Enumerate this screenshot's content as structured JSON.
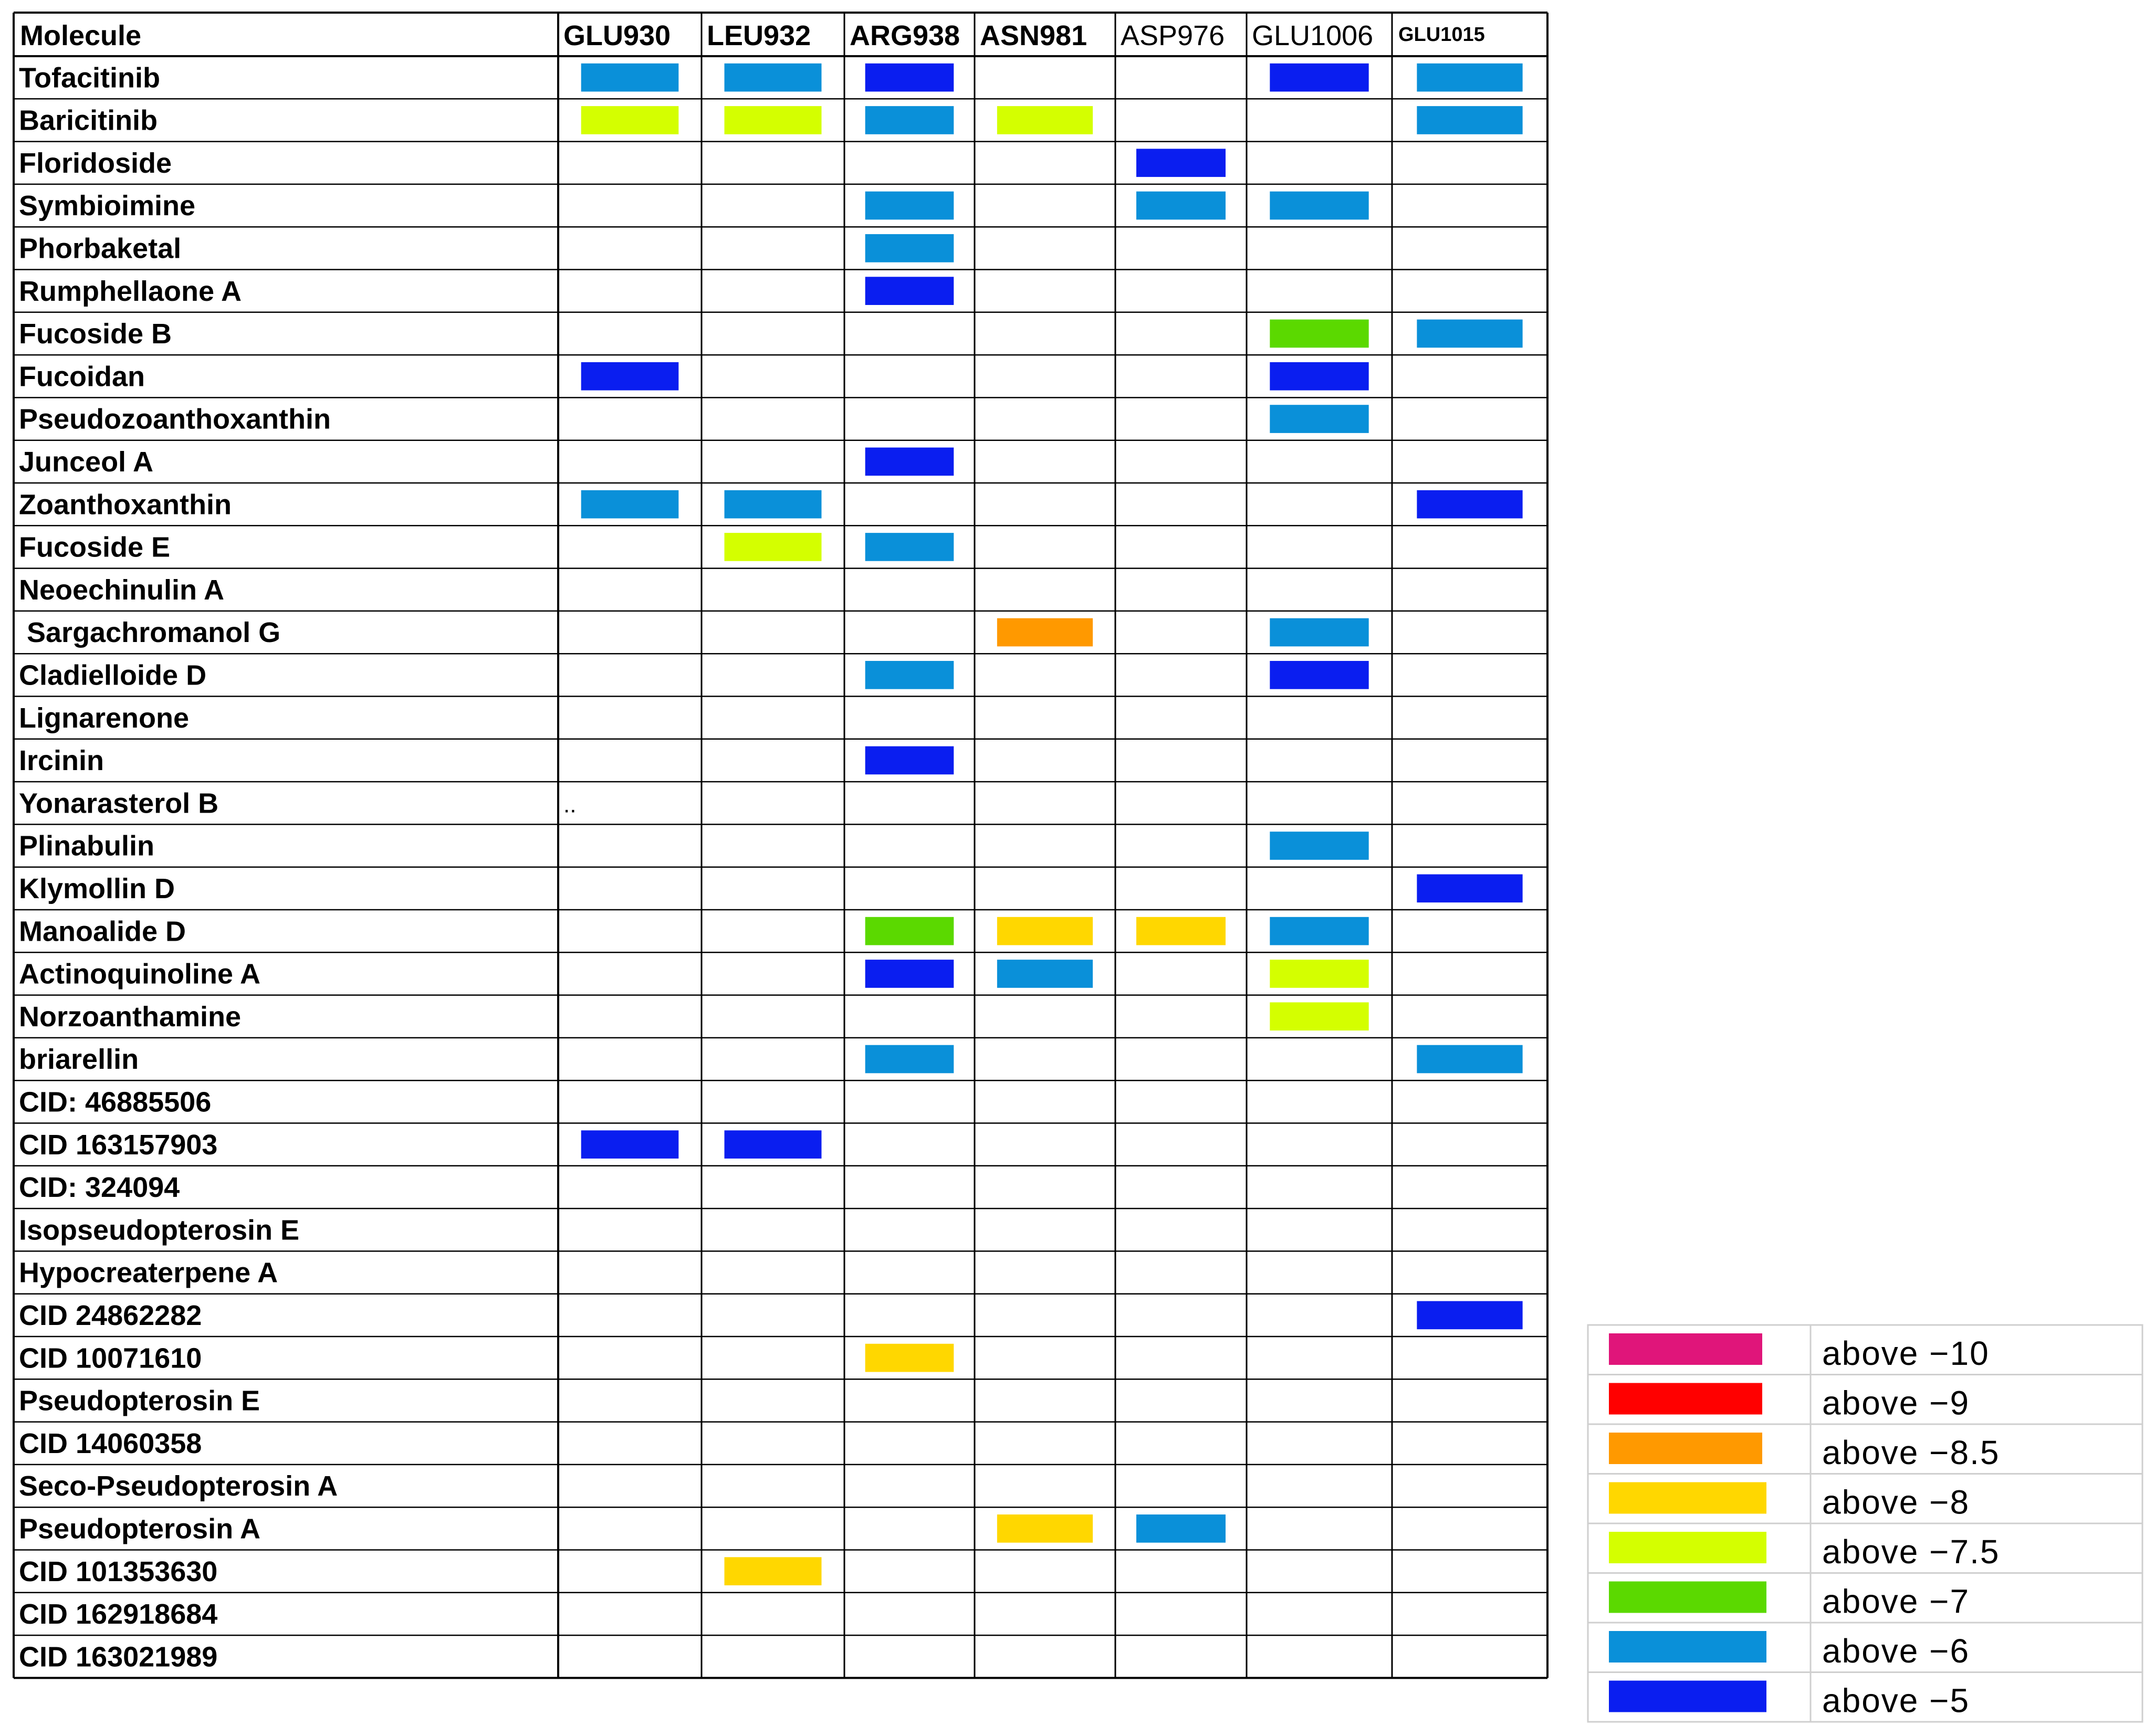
{
  "chart_data": {
    "type": "table",
    "header_corner": "Molecule",
    "columns": [
      "GLU930",
      "LEU932",
      "ARG938",
      "ASN981",
      "ASP976",
      "GLU1006",
      "GLU1015"
    ],
    "rows": [
      {
        "molecule": "Tofacitinib",
        "cells": [
          "above −6",
          "above −6",
          "above −5",
          "",
          "",
          "above −5",
          "above −6"
        ]
      },
      {
        "molecule": "Baricitinib",
        "cells": [
          "above −7.5",
          "above −7.5",
          "above −6",
          "above −7.5",
          "",
          "",
          "above −6"
        ]
      },
      {
        "molecule": "Floridoside",
        "cells": [
          "",
          "",
          "",
          "",
          "above −5",
          "",
          ""
        ]
      },
      {
        "molecule": "Symbioimine",
        "cells": [
          "",
          "",
          "above −6",
          "",
          "above −6",
          "above −6",
          ""
        ]
      },
      {
        "molecule": "Phorbaketal",
        "cells": [
          "",
          "",
          "above −6",
          "",
          "",
          "",
          ""
        ]
      },
      {
        "molecule": "Rumphellaone A",
        "cells": [
          "",
          "",
          "above −5",
          "",
          "",
          "",
          ""
        ]
      },
      {
        "molecule": "Fucoside B",
        "cells": [
          "",
          "",
          "",
          "",
          "",
          "above −7",
          "above −6"
        ]
      },
      {
        "molecule": "Fucoidan",
        "cells": [
          "above −5",
          "",
          "",
          "",
          "",
          "above −5",
          ""
        ]
      },
      {
        "molecule": "Pseudozoanthoxanthin",
        "cells": [
          "",
          "",
          "",
          "",
          "",
          "above −6",
          ""
        ]
      },
      {
        "molecule": "Junceol A",
        "cells": [
          "",
          "",
          "above −5",
          "",
          "",
          "",
          ""
        ]
      },
      {
        "molecule": "Zoanthoxanthin",
        "cells": [
          "above −6",
          "above −6",
          "",
          "",
          "",
          "",
          "above −5"
        ]
      },
      {
        "molecule": "Fucoside E",
        "cells": [
          "",
          "above −7.5",
          "above −6",
          "",
          "",
          "",
          ""
        ]
      },
      {
        "molecule": "Neoechinulin A",
        "cells": [
          "",
          "",
          "",
          "",
          "",
          "",
          ""
        ]
      },
      {
        "molecule": " Sargachromanol G",
        "cells": [
          "",
          "",
          "",
          "above −8.5",
          "",
          "above −6",
          ""
        ]
      },
      {
        "molecule": "Cladielloide D",
        "cells": [
          "",
          "",
          "above −6",
          "",
          "",
          "above −5",
          ""
        ]
      },
      {
        "molecule": "Lignarenone",
        "cells": [
          "",
          "",
          "",
          "",
          "",
          "",
          ""
        ]
      },
      {
        "molecule": "Ircinin",
        "cells": [
          "",
          "",
          "above −5",
          "",
          "",
          "",
          ""
        ]
      },
      {
        "molecule": "Yonarasterol B",
        "cells": [
          "",
          "",
          "",
          "",
          "",
          "",
          ""
        ],
        "note": ".."
      },
      {
        "molecule": "Plinabulin",
        "cells": [
          "",
          "",
          "",
          "",
          "",
          "above −6",
          ""
        ]
      },
      {
        "molecule": "Klymollin D",
        "cells": [
          "",
          "",
          "",
          "",
          "",
          "",
          "above −5"
        ]
      },
      {
        "molecule": "Manoalide D",
        "cells": [
          "",
          "",
          "above −7",
          "above −8",
          "above −8",
          "above −6",
          ""
        ]
      },
      {
        "molecule": "Actinoquinoline A",
        "cells": [
          "",
          "",
          "above −5",
          "above −6",
          "",
          "above −7.5",
          ""
        ]
      },
      {
        "molecule": "Norzoanthamine",
        "cells": [
          "",
          "",
          "",
          "",
          "",
          "above −7.5",
          ""
        ]
      },
      {
        "molecule": "briarellin",
        "cells": [
          "",
          "",
          "above −6",
          "",
          "",
          "",
          "above −6"
        ]
      },
      {
        "molecule": "CID: 46885506",
        "cells": [
          "",
          "",
          "",
          "",
          "",
          "",
          ""
        ]
      },
      {
        "molecule": "CID 163157903",
        "cells": [
          "above −5",
          "above −5",
          "",
          "",
          "",
          "",
          ""
        ]
      },
      {
        "molecule": "CID: 324094",
        "cells": [
          "",
          "",
          "",
          "",
          "",
          "",
          ""
        ]
      },
      {
        "molecule": "Isopseudopterosin E",
        "cells": [
          "",
          "",
          "",
          "",
          "",
          "",
          ""
        ]
      },
      {
        "molecule": "Hypocreaterpene A",
        "cells": [
          "",
          "",
          "",
          "",
          "",
          "",
          ""
        ]
      },
      {
        "molecule": "CID 24862282",
        "cells": [
          "",
          "",
          "",
          "",
          "",
          "",
          "above −5"
        ]
      },
      {
        "molecule": "CID 10071610",
        "cells": [
          "",
          "",
          "above −8",
          "",
          "",
          "",
          ""
        ]
      },
      {
        "molecule": "Pseudopterosin E",
        "cells": [
          "",
          "",
          "",
          "",
          "",
          "",
          ""
        ]
      },
      {
        "molecule": "CID 14060358",
        "cells": [
          "",
          "",
          "",
          "",
          "",
          "",
          ""
        ]
      },
      {
        "molecule": "Seco-Pseudopterosin A",
        "cells": [
          "",
          "",
          "",
          "",
          "",
          "",
          ""
        ]
      },
      {
        "molecule": "Pseudopterosin A",
        "cells": [
          "",
          "",
          "",
          "above −8",
          "above −6",
          "",
          ""
        ]
      },
      {
        "molecule": "CID 101353630",
        "cells": [
          "",
          "above −8",
          "",
          "",
          "",
          "",
          ""
        ]
      },
      {
        "molecule": "CID 162918684",
        "cells": [
          "",
          "",
          "",
          "",
          "",
          "",
          ""
        ]
      },
      {
        "molecule": "CID 163021989",
        "cells": [
          "",
          "",
          "",
          "",
          "",
          "",
          ""
        ]
      }
    ],
    "legend": [
      {
        "label": "above −10",
        "color": "#e0157a"
      },
      {
        "label": "above −9",
        "color": "#ff0000"
      },
      {
        "label": "above −8.5",
        "color": "#ff9900"
      },
      {
        "label": "above −8",
        "color": "#ffd700"
      },
      {
        "label": "above −7.5",
        "color": "#d4ff00"
      },
      {
        "label": "above −7",
        "color": "#5bd900"
      },
      {
        "label": "above −6",
        "color": "#0a90d9"
      },
      {
        "label": "above −5",
        "color": "#0a1ef0"
      }
    ]
  }
}
